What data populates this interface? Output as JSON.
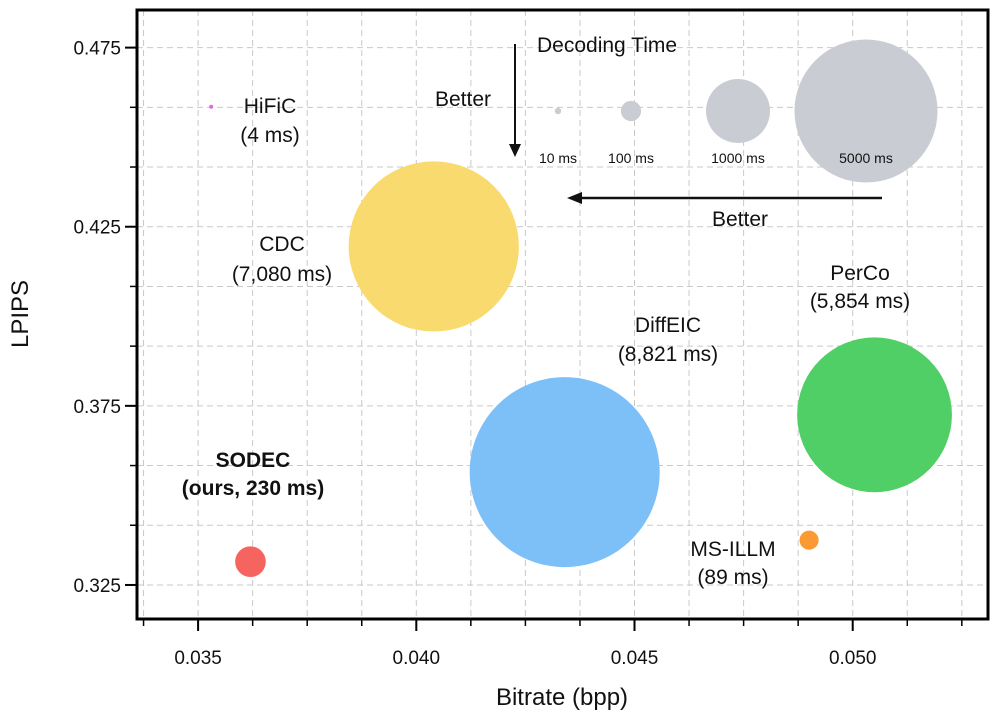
{
  "chart_data": {
    "type": "bubble",
    "xlabel": "Bitrate (bpp)",
    "ylabel": "LPIPS",
    "xlim": [
      0.0336,
      0.0531
    ],
    "ylim": [
      0.3155,
      0.4855
    ],
    "grid": true,
    "x_ticks": [
      0.035,
      0.04,
      0.045,
      0.05
    ],
    "x_tick_labels": [
      "0.035",
      "0.040",
      "0.045",
      "0.050"
    ],
    "y_ticks": [
      0.325,
      0.375,
      0.425,
      0.475
    ],
    "y_tick_labels": [
      "0.325",
      "0.375",
      "0.425",
      "0.475"
    ],
    "series": [
      {
        "name": "HiFiC",
        "time_label": "(4 ms)",
        "decoding_ms": 4,
        "x": 0.0353,
        "y": 0.4585,
        "color": "#e466e4",
        "bold": false
      },
      {
        "name": "CDC",
        "time_label": "(7,080 ms)",
        "decoding_ms": 7080,
        "x": 0.0404,
        "y": 0.4195,
        "color": "#f9da6e",
        "bold": false
      },
      {
        "name": "PerCo",
        "time_label": "(5,854 ms)",
        "decoding_ms": 5854,
        "x": 0.0505,
        "y": 0.3725,
        "color": "#4fcf66",
        "bold": false
      },
      {
        "name": "DiffEIC",
        "time_label": "(8,821 ms)",
        "decoding_ms": 8821,
        "x": 0.0434,
        "y": 0.3565,
        "color": "#7dbff7",
        "bold": false
      },
      {
        "name": "MS-ILLM",
        "time_label": "(89 ms)",
        "decoding_ms": 89,
        "x": 0.049,
        "y": 0.3375,
        "color": "#fb9a32",
        "bold": false
      },
      {
        "name": "SODEC",
        "time_label": "(ours, 230 ms)",
        "decoding_ms": 230,
        "x": 0.0362,
        "y": 0.3315,
        "color": "#f6645f",
        "bold": true
      }
    ],
    "legend": {
      "title": "Decoding Time",
      "items": [
        {
          "label": "10 ms",
          "ms": 10
        },
        {
          "label": "100 ms",
          "ms": 100
        },
        {
          "label": "1000 ms",
          "ms": 1000
        },
        {
          "label": "5000 ms",
          "ms": 5000
        }
      ],
      "color": "#c9ccd3"
    },
    "annotations": [
      {
        "text": "Better",
        "direction": "down"
      },
      {
        "text": "Better",
        "direction": "left"
      }
    ]
  }
}
